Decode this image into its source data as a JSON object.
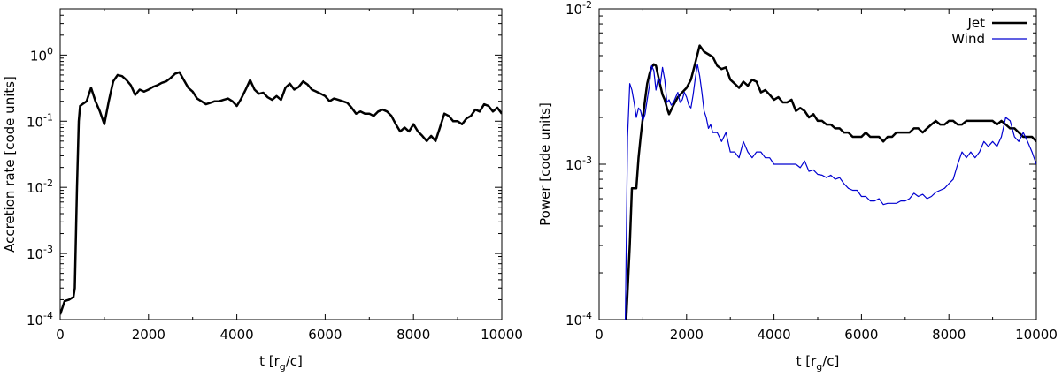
{
  "chart_data": [
    {
      "type": "line",
      "title": "",
      "xlabel": "t [r",
      "xlabel_sub": "g",
      "xlabel_tail": "/c]",
      "ylabel": "Accretion rate [code units]",
      "xlim": [
        0,
        10000
      ],
      "ylim": [
        0.0001,
        5
      ],
      "yscale": "log",
      "grid": false,
      "x_ticks": [
        "0",
        "2000",
        "4000",
        "6000",
        "8000",
        "10000"
      ],
      "y_ticks": [
        {
          "base": "10",
          "exp": "-4",
          "value": 0.0001
        },
        {
          "base": "10",
          "exp": "-3",
          "value": 0.001
        },
        {
          "base": "10",
          "exp": "-2",
          "value": 0.01
        },
        {
          "base": "10",
          "exp": "-1",
          "value": 0.1
        },
        {
          "base": "10",
          "exp": "0",
          "value": 1
        }
      ],
      "series": [
        {
          "color": "#000000",
          "x": [
            0,
            100,
            200,
            300,
            330,
            380,
            420,
            450,
            500,
            600,
            700,
            800,
            900,
            1000,
            1100,
            1200,
            1300,
            1400,
            1500,
            1600,
            1700,
            1800,
            1900,
            2000,
            2100,
            2200,
            2300,
            2400,
            2500,
            2600,
            2700,
            2800,
            2900,
            3000,
            3100,
            3200,
            3300,
            3400,
            3500,
            3600,
            3700,
            3800,
            3900,
            4000,
            4100,
            4200,
            4300,
            4400,
            4500,
            4600,
            4700,
            4800,
            4900,
            5000,
            5100,
            5200,
            5300,
            5400,
            5500,
            5600,
            5700,
            5800,
            5900,
            6000,
            6100,
            6200,
            6300,
            6400,
            6500,
            6600,
            6700,
            6800,
            6900,
            7000,
            7100,
            7200,
            7300,
            7400,
            7500,
            7600,
            7700,
            7800,
            7900,
            8000,
            8100,
            8200,
            8300,
            8400,
            8500,
            8600,
            8700,
            8800,
            8900,
            9000,
            9100,
            9200,
            9300,
            9400,
            9500,
            9600,
            9700,
            9800,
            9900,
            10000
          ],
          "y": [
            0.00012,
            0.00019,
            0.0002,
            0.00022,
            0.0003,
            0.01,
            0.1,
            0.17,
            0.18,
            0.2,
            0.32,
            0.2,
            0.14,
            0.09,
            0.2,
            0.4,
            0.5,
            0.48,
            0.42,
            0.35,
            0.25,
            0.3,
            0.28,
            0.3,
            0.33,
            0.35,
            0.38,
            0.4,
            0.45,
            0.52,
            0.55,
            0.42,
            0.32,
            0.28,
            0.22,
            0.2,
            0.18,
            0.19,
            0.2,
            0.2,
            0.21,
            0.22,
            0.2,
            0.17,
            0.22,
            0.3,
            0.42,
            0.3,
            0.26,
            0.27,
            0.23,
            0.21,
            0.24,
            0.21,
            0.32,
            0.37,
            0.3,
            0.33,
            0.4,
            0.36,
            0.3,
            0.28,
            0.26,
            0.24,
            0.2,
            0.22,
            0.21,
            0.2,
            0.19,
            0.16,
            0.13,
            0.14,
            0.13,
            0.13,
            0.12,
            0.14,
            0.15,
            0.14,
            0.12,
            0.09,
            0.07,
            0.08,
            0.07,
            0.09,
            0.07,
            0.06,
            0.05,
            0.06,
            0.05,
            0.08,
            0.13,
            0.12,
            0.1,
            0.1,
            0.09,
            0.11,
            0.12,
            0.15,
            0.14,
            0.18,
            0.17,
            0.14,
            0.16,
            0.13
          ]
        }
      ]
    },
    {
      "type": "line",
      "title": "",
      "xlabel": "t [r",
      "xlabel_sub": "g",
      "xlabel_tail": "/c]",
      "ylabel": "Power [code units]",
      "xlim": [
        0,
        10000
      ],
      "ylim": [
        0.0001,
        0.01
      ],
      "yscale": "log",
      "grid": false,
      "legend": "top-right",
      "x_ticks": [
        "0",
        "2000",
        "4000",
        "6000",
        "8000",
        "10000"
      ],
      "y_ticks": [
        {
          "base": "10",
          "exp": "-4",
          "value": 0.0001
        },
        {
          "base": "10",
          "exp": "-3",
          "value": 0.001
        },
        {
          "base": "10",
          "exp": "-2",
          "value": 0.01
        }
      ],
      "series": [
        {
          "name": "Jet",
          "color": "#000000",
          "x": [
            620,
            700,
            750,
            800,
            850,
            900,
            950,
            1000,
            1050,
            1100,
            1150,
            1200,
            1250,
            1300,
            1350,
            1400,
            1450,
            1500,
            1550,
            1600,
            1700,
            1800,
            1900,
            2000,
            2100,
            2200,
            2300,
            2400,
            2500,
            2600,
            2700,
            2800,
            2900,
            3000,
            3100,
            3200,
            3300,
            3400,
            3500,
            3600,
            3700,
            3800,
            3900,
            4000,
            4100,
            4200,
            4300,
            4400,
            4500,
            4600,
            4700,
            4800,
            4900,
            5000,
            5100,
            5200,
            5300,
            5400,
            5500,
            5600,
            5700,
            5800,
            5900,
            6000,
            6100,
            6200,
            6300,
            6400,
            6500,
            6600,
            6700,
            6800,
            6900,
            7000,
            7100,
            7200,
            7300,
            7400,
            7500,
            7600,
            7700,
            7800,
            7900,
            8000,
            8100,
            8200,
            8300,
            8400,
            8500,
            8600,
            8700,
            8800,
            8900,
            9000,
            9100,
            9200,
            9300,
            9400,
            9500,
            9600,
            9700,
            9800,
            9900,
            10000
          ],
          "y": [
            0.0001,
            0.0003,
            0.0007,
            0.0007,
            0.0007,
            0.0011,
            0.0015,
            0.002,
            0.0026,
            0.0033,
            0.0038,
            0.0042,
            0.0044,
            0.0043,
            0.0037,
            0.0032,
            0.0028,
            0.0026,
            0.0023,
            0.0021,
            0.0024,
            0.0027,
            0.0029,
            0.0031,
            0.0035,
            0.0045,
            0.0058,
            0.0053,
            0.0051,
            0.0049,
            0.0043,
            0.0041,
            0.0042,
            0.0035,
            0.0033,
            0.0031,
            0.0034,
            0.0032,
            0.0035,
            0.0034,
            0.0029,
            0.003,
            0.0028,
            0.0026,
            0.0027,
            0.0025,
            0.0025,
            0.0026,
            0.0022,
            0.0023,
            0.0022,
            0.002,
            0.0021,
            0.0019,
            0.0019,
            0.0018,
            0.0018,
            0.0017,
            0.0017,
            0.0016,
            0.0016,
            0.0015,
            0.0015,
            0.0015,
            0.0016,
            0.0015,
            0.0015,
            0.0015,
            0.0014,
            0.0015,
            0.0015,
            0.0016,
            0.0016,
            0.0016,
            0.0016,
            0.0017,
            0.0017,
            0.0016,
            0.0017,
            0.0018,
            0.0019,
            0.0018,
            0.0018,
            0.0019,
            0.0019,
            0.0018,
            0.0018,
            0.0019,
            0.0019,
            0.0019,
            0.0019,
            0.0019,
            0.0019,
            0.0019,
            0.0018,
            0.0019,
            0.0018,
            0.0017,
            0.0017,
            0.0016,
            0.0015,
            0.0015,
            0.0015,
            0.0014
          ]
        },
        {
          "name": "Wind",
          "color": "#0000d0",
          "x": [
            600,
            650,
            700,
            750,
            800,
            850,
            900,
            950,
            1000,
            1050,
            1100,
            1150,
            1200,
            1250,
            1300,
            1350,
            1400,
            1450,
            1500,
            1550,
            1600,
            1650,
            1700,
            1750,
            1800,
            1850,
            1900,
            1950,
            2000,
            2050,
            2100,
            2150,
            2200,
            2250,
            2300,
            2350,
            2400,
            2450,
            2500,
            2550,
            2600,
            2700,
            2800,
            2900,
            3000,
            3100,
            3200,
            3300,
            3400,
            3500,
            3600,
            3700,
            3800,
            3900,
            4000,
            4100,
            4200,
            4300,
            4400,
            4500,
            4600,
            4700,
            4800,
            4900,
            5000,
            5100,
            5200,
            5300,
            5400,
            5500,
            5600,
            5700,
            5800,
            5900,
            6000,
            6100,
            6200,
            6300,
            6400,
            6500,
            6600,
            6700,
            6800,
            6900,
            7000,
            7100,
            7200,
            7300,
            7400,
            7500,
            7600,
            7700,
            7800,
            7900,
            8000,
            8100,
            8200,
            8300,
            8400,
            8500,
            8600,
            8700,
            8800,
            8900,
            9000,
            9100,
            9200,
            9300,
            9400,
            9500,
            9600,
            9700,
            9800,
            9900,
            10000
          ],
          "y": [
            0.0001,
            0.0015,
            0.0033,
            0.003,
            0.0025,
            0.002,
            0.0023,
            0.0022,
            0.0019,
            0.0021,
            0.0026,
            0.0032,
            0.0043,
            0.004,
            0.003,
            0.0036,
            0.0033,
            0.0042,
            0.0035,
            0.0025,
            0.0026,
            0.0024,
            0.0025,
            0.0027,
            0.0029,
            0.0025,
            0.0026,
            0.0029,
            0.0027,
            0.0024,
            0.0023,
            0.0028,
            0.0036,
            0.0044,
            0.0037,
            0.0029,
            0.0022,
            0.002,
            0.0017,
            0.0018,
            0.0016,
            0.0016,
            0.0014,
            0.0016,
            0.0012,
            0.0012,
            0.0011,
            0.0014,
            0.0012,
            0.0011,
            0.0012,
            0.0012,
            0.0011,
            0.0011,
            0.001,
            0.001,
            0.001,
            0.001,
            0.001,
            0.001,
            0.00095,
            0.00105,
            0.0009,
            0.00092,
            0.00086,
            0.00085,
            0.00082,
            0.00085,
            0.0008,
            0.00082,
            0.00075,
            0.0007,
            0.00068,
            0.00068,
            0.00062,
            0.00062,
            0.00058,
            0.00058,
            0.0006,
            0.00055,
            0.00056,
            0.00056,
            0.00056,
            0.00058,
            0.00058,
            0.0006,
            0.00065,
            0.00062,
            0.00064,
            0.0006,
            0.00062,
            0.00066,
            0.00068,
            0.0007,
            0.00075,
            0.0008,
            0.001,
            0.0012,
            0.0011,
            0.0012,
            0.0011,
            0.0012,
            0.0014,
            0.0013,
            0.0014,
            0.0013,
            0.0015,
            0.002,
            0.0019,
            0.0015,
            0.0014,
            0.0016,
            0.0014,
            0.0012,
            0.001
          ]
        }
      ]
    }
  ]
}
